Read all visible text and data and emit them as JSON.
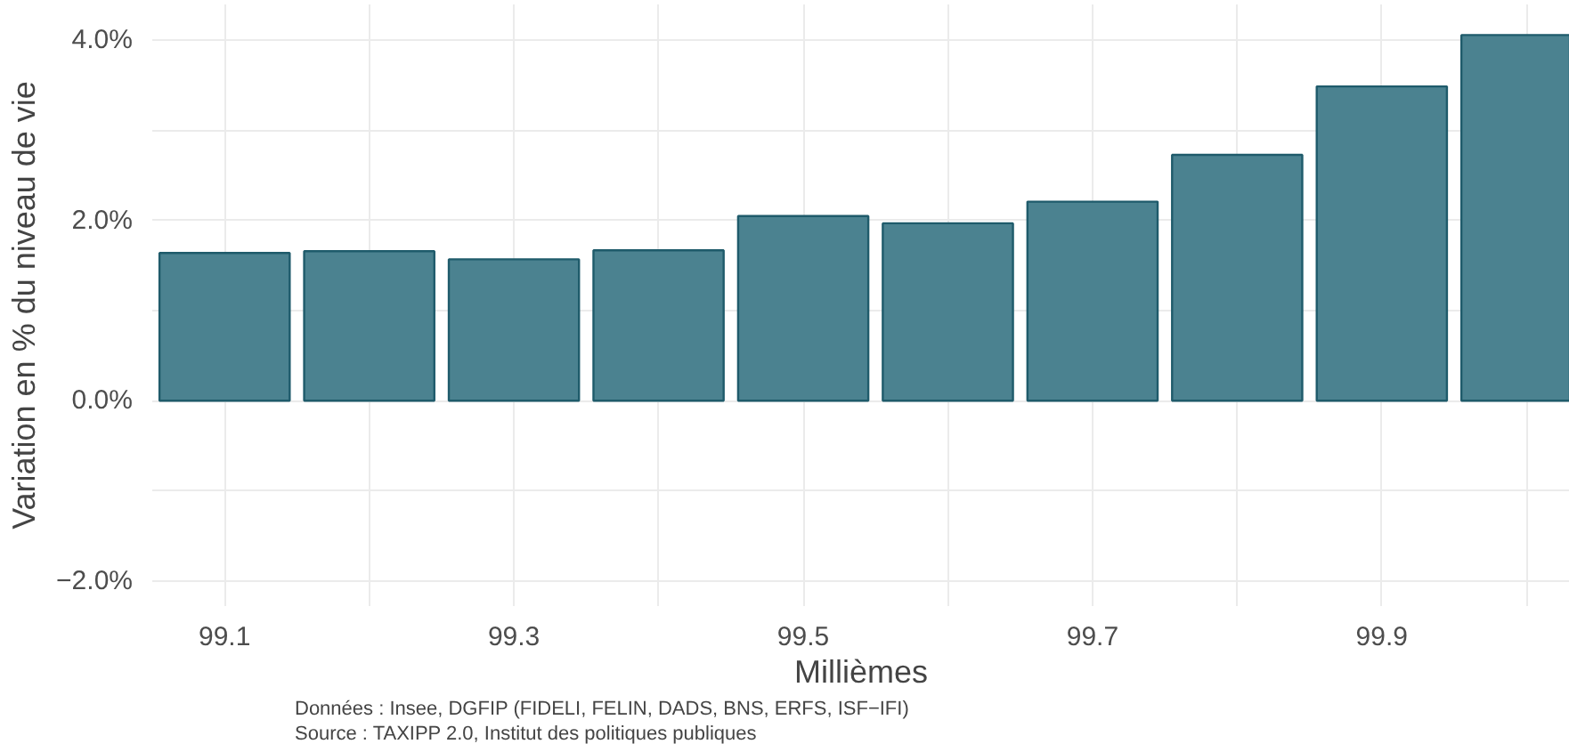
{
  "chart_data": {
    "type": "bar",
    "x": [
      99.1,
      99.2,
      99.3,
      99.4,
      99.5,
      99.6,
      99.7,
      99.8,
      99.9,
      100.0
    ],
    "series": [
      {
        "color": "#4b8290",
        "values": [
          1.64,
          1.66,
          1.57,
          1.67,
          2.05,
          1.97,
          2.21,
          2.73,
          3.49,
          4.06
        ]
      }
    ],
    "xlabel": "Millièmes",
    "ylabel": "Variation en % du niveau de vie",
    "xlim": [
      99.05,
      100.03
    ],
    "ylim": [
      -2.28,
      4.4
    ],
    "xticks": [
      99.1,
      {
        "value": 99.2,
        "label": null
      },
      99.3,
      {
        "value": 99.4,
        "label": null
      },
      99.5,
      {
        "value": 99.6,
        "label": null
      },
      99.7,
      {
        "value": 99.8,
        "label": null
      },
      99.9,
      {
        "value": 100.0,
        "label": null
      }
    ],
    "yticks": [
      {
        "value": -2,
        "label": "−2.0%"
      },
      {
        "value": -1,
        "label": null
      },
      {
        "value": 0,
        "label": "0.0%"
      },
      {
        "value": 1,
        "label": null
      },
      {
        "value": 2,
        "label": "2.0%"
      },
      {
        "value": 3,
        "label": null
      },
      {
        "value": 4,
        "label": "4.0%"
      }
    ],
    "grid": true,
    "annotations": [
      "Données : Insee, DGFIP (FIDELI, FELIN, DADS, BNS, ERFS, ISF−IFI)",
      "Source : TAXIPP 2.0, Institut des politiques publiques"
    ]
  }
}
